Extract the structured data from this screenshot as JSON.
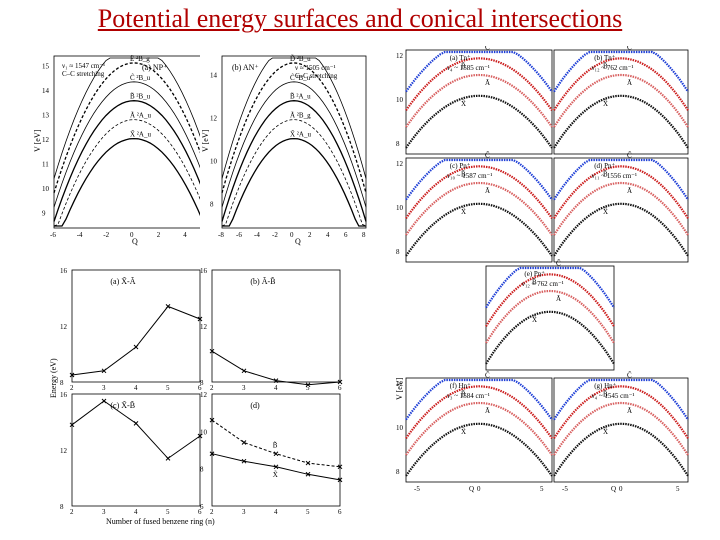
{
  "slide": {
    "title": "Potential energy surfaces and conical intersections"
  },
  "pes_left": {
    "labels": {
      "a_np": "(a) NP⁺",
      "ylabel": "V [eV]",
      "xlabel": "Q",
      "legend1": "ν₁ ≈ 1547 cm⁻¹",
      "legend2": "C–C stretching"
    },
    "state_labels": [
      "D̃ ²A_u",
      "Ẽ ²B_g",
      "C̃ ²B_u",
      "B̃ ²B_u",
      "Ã ²A_u",
      "X̃ ²A_u"
    ],
    "yticks": [
      "9",
      "10",
      "11",
      "12",
      "13",
      "14",
      "15"
    ],
    "xticks": [
      "-6",
      "-4",
      "-2",
      "0",
      "2",
      "4",
      "6"
    ]
  },
  "pes_right": {
    "labels": {
      "b_an": "(b) AN⁺",
      "ylabel": "V [eV]",
      "xlabel": "Q",
      "legend1": "ν ≈ 1505 cm⁻¹",
      "legend2": "C–C stretching"
    },
    "state_labels": [
      "Ẽ ²A_g",
      "D̃ ²B_u",
      "C̃ ²B_u",
      "B̃ ²A_u",
      "Ã ²B_g",
      "X̃ ²A_u"
    ],
    "yticks": [
      "8",
      "10",
      "12",
      "14"
    ],
    "xticks": [
      "-8",
      "-6",
      "-4",
      "-2",
      "0",
      "2",
      "4",
      "6",
      "8"
    ]
  },
  "chart_data": [
    {
      "type": "line",
      "panel": "(a)",
      "label": "X̃-Ã",
      "x": [
        2,
        3,
        4,
        5,
        6
      ],
      "values": [
        8.5,
        8.8,
        10.5,
        13.4,
        12.5
      ],
      "ylim": [
        8,
        16
      ],
      "yticks": [
        8,
        12,
        16
      ]
    },
    {
      "type": "line",
      "panel": "(b)",
      "label": "Ã-B̃",
      "x": [
        2,
        3,
        4,
        5,
        6
      ],
      "values": [
        10.2,
        8.8,
        8.1,
        7.8,
        8.0
      ],
      "ylim": [
        8,
        16
      ],
      "yticks": [
        8,
        12,
        16
      ]
    },
    {
      "type": "line",
      "panel": "(c)",
      "label": "X̃-B̃",
      "x": [
        2,
        3,
        4,
        5,
        6
      ],
      "values": [
        13.8,
        15.5,
        13.9,
        11.4,
        13.0
      ],
      "ylim": [
        8,
        16
      ],
      "yticks": [
        8,
        12,
        16
      ]
    },
    {
      "type": "line",
      "panel": "(d)",
      "series": [
        {
          "name": "B̃",
          "values": [
            10.6,
            9.4,
            8.8,
            8.3,
            8.1
          ]
        },
        {
          "name": "X̃",
          "values": [
            8.8,
            8.4,
            8.1,
            7.7,
            7.4
          ]
        }
      ],
      "x": [
        2,
        3,
        4,
        5,
        6
      ],
      "ylim": [
        6,
        12
      ],
      "yticks": [
        6,
        8,
        10,
        12
      ]
    }
  ],
  "ylabel_energy": "Energy (eV)",
  "xlabel_rings": "Number of fused benzene ring (n)",
  "xticks_rings": [
    "2",
    "3",
    "4",
    "5",
    "6"
  ],
  "pes_grid": {
    "ylabel": "V [eV]",
    "panels": [
      {
        "tag": "(a) Tn⁺",
        "freq": "ν₄ ~ 1585 cm⁻¹"
      },
      {
        "tag": "(b) Tn⁺",
        "freq": "ν₁₂ ~ 762 cm⁻¹"
      },
      {
        "tag": "(c) Pn⁺",
        "freq": "ν₁₀ ~ 1587 cm⁻¹"
      },
      {
        "tag": "(d) Pn⁺",
        "freq": "ν₁₁ ~ 1556 cm⁻¹"
      },
      {
        "tag": "(e) Pn⁺",
        "freq": "ν₁₂ ~ 762 cm⁻¹"
      },
      {
        "tag": "(f) Hn⁺",
        "freq": "ν₃ ~ 1584 cm⁻¹"
      },
      {
        "tag": "(g) Hn⁺",
        "freq": "ν₄ ~ 1545 cm⁻¹"
      }
    ],
    "state_names": [
      "C̃",
      "B̃",
      "Ã",
      "X̃"
    ],
    "yticks_top": [
      "8",
      "10",
      "12"
    ],
    "xticks": [
      "-5",
      "0",
      "5"
    ],
    "xlabel": "Q",
    "colors": {
      "C": "#1f3fd6",
      "B": "#cc1f1f",
      "A": "#d86060",
      "X": "#111111"
    }
  }
}
